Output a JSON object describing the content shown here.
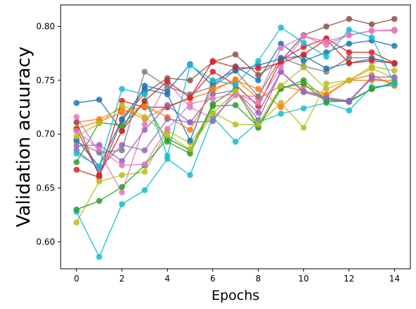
{
  "chart_data": {
    "type": "line",
    "title": "",
    "xlabel": "Epochs",
    "ylabel": "Validation acuuracy",
    "xlim": [
      -0.7,
      14.7
    ],
    "ylim": [
      0.575,
      0.82
    ],
    "xticks": [
      0,
      2,
      4,
      6,
      8,
      10,
      12,
      14
    ],
    "yticks": [
      0.6,
      0.65,
      0.7,
      0.75,
      0.8
    ],
    "ytick_labels": [
      "0.60",
      "0.65",
      "0.70",
      "0.75",
      "0.80"
    ],
    "grid": false,
    "legend": "none",
    "x": [
      0,
      1,
      2,
      3,
      4,
      5,
      6,
      7,
      8,
      9,
      10,
      11,
      12,
      13,
      14
    ],
    "series": [
      {
        "color": "#1f77b4",
        "values": [
          0.729,
          0.732,
          0.703,
          0.745,
          0.74,
          0.765,
          0.745,
          0.763,
          0.75,
          0.784,
          0.768,
          0.776,
          0.784,
          0.787,
          0.782
        ]
      },
      {
        "color": "#ff7f0e",
        "values": [
          0.711,
          0.714,
          0.724,
          0.714,
          0.726,
          0.733,
          0.74,
          0.751,
          0.733,
          0.745,
          0.74,
          0.736,
          0.75,
          0.75,
          0.75
        ]
      },
      {
        "color": "#2ca02c",
        "values": [
          0.674,
          0.711,
          0.708,
          0.73,
          0.693,
          0.682,
          0.726,
          0.727,
          0.707,
          0.742,
          0.75,
          0.732,
          0.73,
          0.742,
          0.747
        ]
      },
      {
        "color": "#d62728",
        "values": [
          0.667,
          0.66,
          0.731,
          0.725,
          0.725,
          0.734,
          0.758,
          0.746,
          0.726,
          0.769,
          0.781,
          0.789,
          0.776,
          0.776,
          0.766
        ]
      },
      {
        "color": "#9467bd",
        "values": [
          0.689,
          0.69,
          0.675,
          0.704,
          0.727,
          0.711,
          0.737,
          0.741,
          0.713,
          0.758,
          0.739,
          0.733,
          0.73,
          0.752,
          0.747
        ]
      },
      {
        "color": "#8c564b",
        "values": [
          0.711,
          0.662,
          0.713,
          0.738,
          0.752,
          0.75,
          0.767,
          0.774,
          0.755,
          0.768,
          0.792,
          0.8,
          0.807,
          0.802,
          0.807
        ]
      },
      {
        "color": "#e377c2",
        "values": [
          0.716,
          0.683,
          0.646,
          0.709,
          0.748,
          0.725,
          0.715,
          0.736,
          0.735,
          0.78,
          0.791,
          0.783,
          0.792,
          0.796,
          0.796
        ]
      },
      {
        "color": "#7f7f7f",
        "values": [
          0.693,
          0.683,
          0.685,
          0.758,
          0.744,
          0.737,
          0.744,
          0.759,
          0.735,
          0.771,
          0.763,
          0.758,
          0.771,
          0.771,
          0.765
        ]
      },
      {
        "color": "#bcbd22",
        "values": [
          0.618,
          0.656,
          0.662,
          0.665,
          0.703,
          0.692,
          0.72,
          0.709,
          0.709,
          0.729,
          0.706,
          0.747,
          0.75,
          0.761,
          0.752
        ]
      },
      {
        "color": "#17becf",
        "values": [
          0.628,
          0.586,
          0.635,
          0.648,
          0.677,
          0.662,
          0.716,
          0.693,
          0.711,
          0.719,
          0.724,
          0.729,
          0.722,
          0.744,
          0.745
        ]
      },
      {
        "color": "#1f77b4",
        "values": [
          0.695,
          0.67,
          0.714,
          0.742,
          0.737,
          0.694,
          0.749,
          0.759,
          0.764,
          0.77,
          0.773,
          0.761,
          0.766,
          0.77,
          0.766
        ]
      },
      {
        "color": "#ff7f0e",
        "values": [
          0.705,
          0.712,
          0.72,
          0.726,
          0.716,
          0.704,
          0.742,
          0.75,
          0.742,
          0.725,
          0.745,
          0.737,
          0.75,
          0.755,
          0.745
        ]
      },
      {
        "color": "#2ca02c",
        "values": [
          0.63,
          0.638,
          0.651,
          0.671,
          0.696,
          0.685,
          0.728,
          0.742,
          0.706,
          0.743,
          0.747,
          0.73,
          0.731,
          0.742,
          0.748
        ]
      },
      {
        "color": "#d62728",
        "values": [
          0.705,
          0.662,
          0.703,
          0.731,
          0.749,
          0.734,
          0.768,
          0.762,
          0.761,
          0.766,
          0.774,
          0.788,
          0.766,
          0.768,
          0.766
        ]
      },
      {
        "color": "#9467bd",
        "values": [
          0.685,
          0.668,
          0.69,
          0.685,
          0.714,
          0.711,
          0.712,
          0.74,
          0.72,
          0.758,
          0.74,
          0.734,
          0.731,
          0.753,
          0.753
        ]
      },
      {
        "color": "#e377c2",
        "values": [
          0.703,
          0.686,
          0.671,
          0.672,
          0.705,
          0.728,
          0.733,
          0.738,
          0.729,
          0.762,
          0.791,
          0.786,
          0.792,
          0.796,
          0.797
        ]
      },
      {
        "color": "#bcbd22",
        "values": [
          0.698,
          0.71,
          0.727,
          0.716,
          0.699,
          0.686,
          0.719,
          0.74,
          0.709,
          0.745,
          0.762,
          0.742,
          0.75,
          0.763,
          0.759
        ]
      },
      {
        "color": "#17becf",
        "values": [
          0.682,
          0.67,
          0.742,
          0.737,
          0.68,
          0.764,
          0.75,
          0.746,
          0.768,
          0.799,
          0.785,
          0.772,
          0.797,
          0.79,
          0.747
        ]
      }
    ]
  }
}
